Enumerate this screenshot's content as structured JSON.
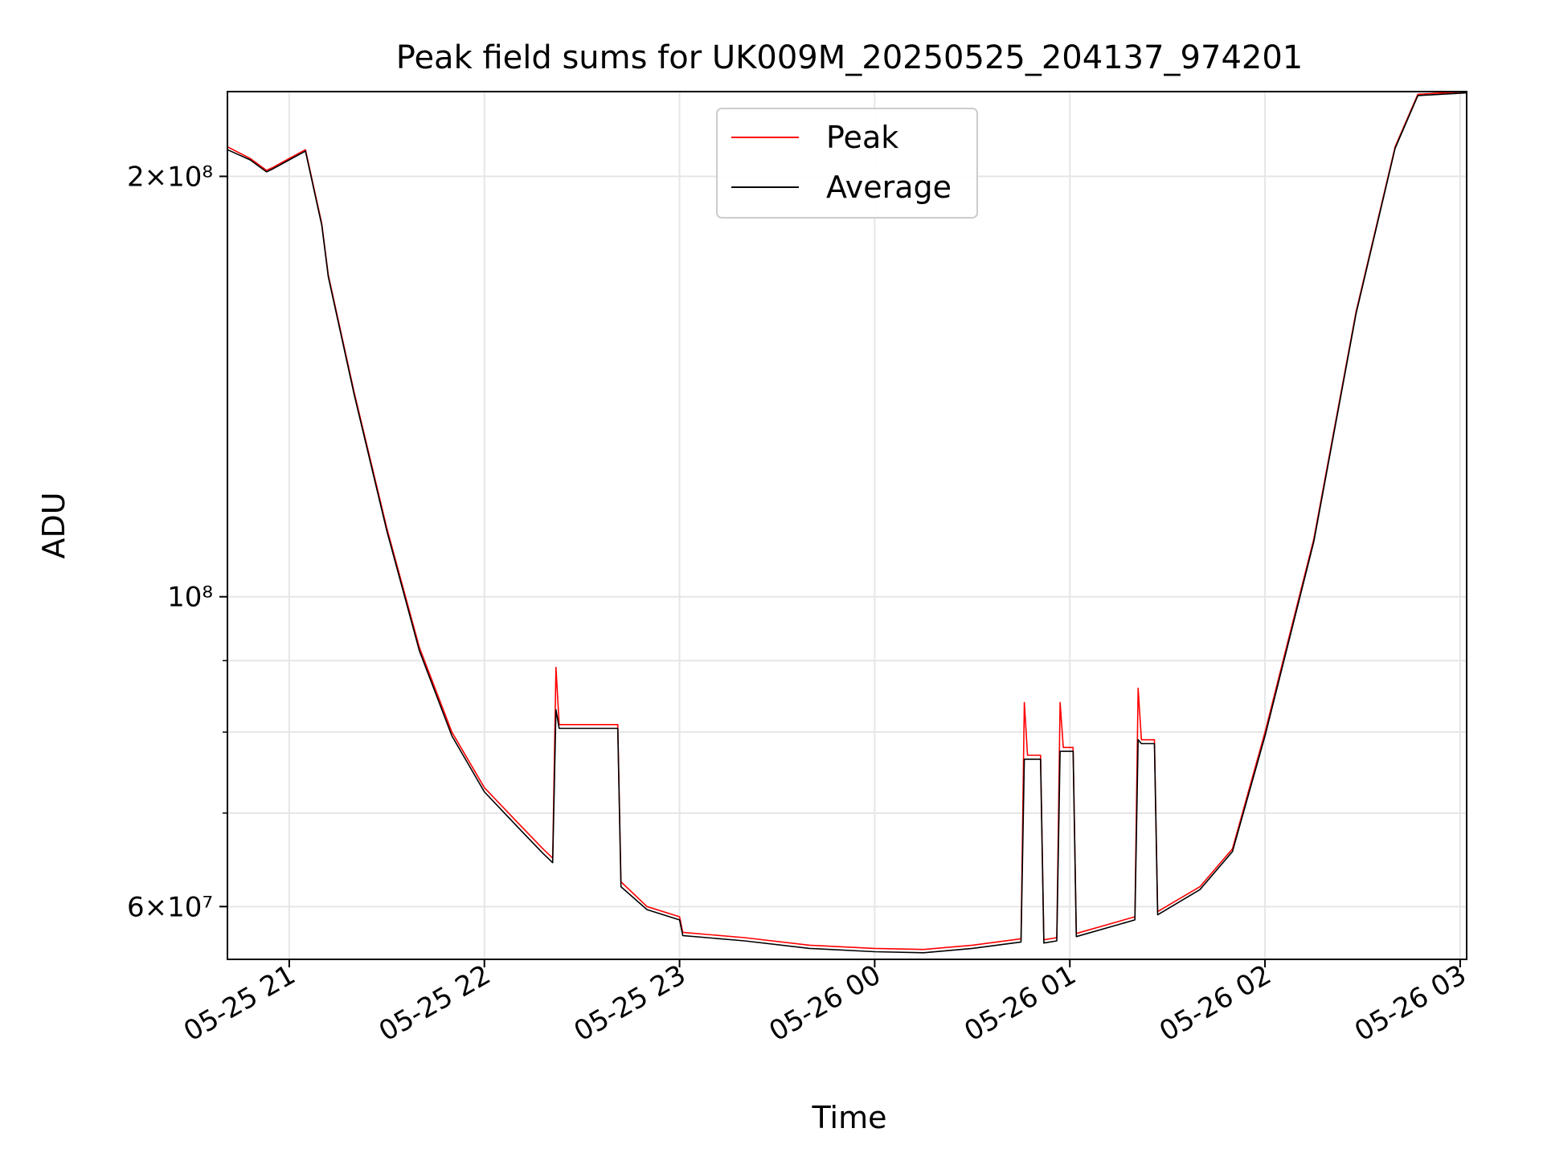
{
  "chart_data": {
    "type": "line",
    "title": "Peak field sums for UK009M_20250525_204137_974201",
    "xlabel": "Time",
    "ylabel": "ADU",
    "yscale": "log",
    "ylim": [
      55000000,
      230000000
    ],
    "xlim": [
      "2025-05-25 20:41",
      "2025-05-26 03:02"
    ],
    "grid": true,
    "legend_position": "top-center",
    "x_ticks": [
      {
        "t": "2025-05-25 21:00",
        "label": "05-25 21"
      },
      {
        "t": "2025-05-25 22:00",
        "label": "05-25 22"
      },
      {
        "t": "2025-05-25 23:00",
        "label": "05-25 23"
      },
      {
        "t": "2025-05-26 00:00",
        "label": "05-26 00"
      },
      {
        "t": "2025-05-26 01:00",
        "label": "05-26 01"
      },
      {
        "t": "2025-05-26 02:00",
        "label": "05-26 02"
      },
      {
        "t": "2025-05-26 03:00",
        "label": "05-26 03"
      }
    ],
    "y_ticks": [
      {
        "value": 60000000,
        "label": "6×10⁷"
      },
      {
        "value": 100000000,
        "label": "10⁸"
      },
      {
        "value": 200000000,
        "label": "2×10⁸"
      }
    ],
    "y_minor_ticks": [
      70000000,
      80000000,
      90000000
    ],
    "series": [
      {
        "name": "Peak",
        "color": "#ff0000",
        "points": [
          [
            "2025-05-25 20:41",
            210000000
          ],
          [
            "2025-05-25 20:48",
            206000000
          ],
          [
            "2025-05-25 20:53",
            202000000
          ],
          [
            "2025-05-25 20:55",
            203000000
          ],
          [
            "2025-05-25 21:00",
            206000000
          ],
          [
            "2025-05-25 21:05",
            209000000
          ],
          [
            "2025-05-25 21:10",
            185000000
          ],
          [
            "2025-05-25 21:12",
            170000000
          ],
          [
            "2025-05-25 21:20",
            140000000
          ],
          [
            "2025-05-25 21:30",
            112000000
          ],
          [
            "2025-05-25 21:40",
            92000000
          ],
          [
            "2025-05-25 21:50",
            80000000
          ],
          [
            "2025-05-25 22:00",
            73000000
          ],
          [
            "2025-05-25 22:10",
            69000000
          ],
          [
            "2025-05-25 22:18",
            66000000
          ],
          [
            "2025-05-25 22:21",
            65000000
          ],
          [
            "2025-05-25 22:22",
            89000000
          ],
          [
            "2025-05-25 22:23",
            81000000
          ],
          [
            "2025-05-25 22:35",
            81000000
          ],
          [
            "2025-05-25 22:41",
            81000000
          ],
          [
            "2025-05-25 22:42",
            62500000
          ],
          [
            "2025-05-25 22:50",
            60000000
          ],
          [
            "2025-05-25 23:00",
            59000000
          ],
          [
            "2025-05-25 23:01",
            57500000
          ],
          [
            "2025-05-25 23:20",
            57000000
          ],
          [
            "2025-05-25 23:40",
            56300000
          ],
          [
            "2025-05-26 00:00",
            56000000
          ],
          [
            "2025-05-26 00:15",
            55900000
          ],
          [
            "2025-05-26 00:30",
            56300000
          ],
          [
            "2025-05-26 00:45",
            56900000
          ],
          [
            "2025-05-26 00:46",
            84000000
          ],
          [
            "2025-05-26 00:47",
            77000000
          ],
          [
            "2025-05-26 00:51",
            77000000
          ],
          [
            "2025-05-26 00:52",
            56800000
          ],
          [
            "2025-05-26 00:56",
            57000000
          ],
          [
            "2025-05-26 00:57",
            84000000
          ],
          [
            "2025-05-26 00:58",
            78000000
          ],
          [
            "2025-05-26 01:01",
            78000000
          ],
          [
            "2025-05-26 01:02",
            57400000
          ],
          [
            "2025-05-26 01:20",
            59000000
          ],
          [
            "2025-05-26 01:21",
            86000000
          ],
          [
            "2025-05-26 01:22",
            79000000
          ],
          [
            "2025-05-26 01:26",
            79000000
          ],
          [
            "2025-05-26 01:27",
            59500000
          ],
          [
            "2025-05-26 01:40",
            62000000
          ],
          [
            "2025-05-26 01:50",
            66000000
          ],
          [
            "2025-05-26 02:00",
            80000000
          ],
          [
            "2025-05-26 02:15",
            110000000
          ],
          [
            "2025-05-26 02:28",
            160000000
          ],
          [
            "2025-05-26 02:40",
            210000000
          ],
          [
            "2025-05-26 02:47",
            229000000
          ],
          [
            "2025-05-26 03:02",
            230000000
          ]
        ]
      },
      {
        "name": "Average",
        "color": "#000000",
        "points": [
          [
            "2025-05-25 20:41",
            209000000
          ],
          [
            "2025-05-25 20:48",
            205500000
          ],
          [
            "2025-05-25 20:53",
            201500000
          ],
          [
            "2025-05-25 20:55",
            202500000
          ],
          [
            "2025-05-25 21:00",
            205500000
          ],
          [
            "2025-05-25 21:05",
            208500000
          ],
          [
            "2025-05-25 21:10",
            184500000
          ],
          [
            "2025-05-25 21:12",
            169500000
          ],
          [
            "2025-05-25 21:20",
            139500000
          ],
          [
            "2025-05-25 21:30",
            111500000
          ],
          [
            "2025-05-25 21:40",
            91500000
          ],
          [
            "2025-05-25 21:50",
            79500000
          ],
          [
            "2025-05-25 22:00",
            72500000
          ],
          [
            "2025-05-25 22:10",
            68500000
          ],
          [
            "2025-05-25 22:18",
            65500000
          ],
          [
            "2025-05-25 22:21",
            64500000
          ],
          [
            "2025-05-25 22:22",
            83000000
          ],
          [
            "2025-05-25 22:23",
            80500000
          ],
          [
            "2025-05-25 22:35",
            80500000
          ],
          [
            "2025-05-25 22:41",
            80500000
          ],
          [
            "2025-05-25 22:42",
            62000000
          ],
          [
            "2025-05-25 22:50",
            59700000
          ],
          [
            "2025-05-25 23:00",
            58700000
          ],
          [
            "2025-05-25 23:01",
            57200000
          ],
          [
            "2025-05-25 23:20",
            56700000
          ],
          [
            "2025-05-25 23:40",
            56000000
          ],
          [
            "2025-05-26 00:00",
            55700000
          ],
          [
            "2025-05-26 00:15",
            55600000
          ],
          [
            "2025-05-26 00:30",
            56000000
          ],
          [
            "2025-05-26 00:45",
            56600000
          ],
          [
            "2025-05-26 00:46",
            76500000
          ],
          [
            "2025-05-26 00:47",
            76500000
          ],
          [
            "2025-05-26 00:51",
            76500000
          ],
          [
            "2025-05-26 00:52",
            56500000
          ],
          [
            "2025-05-26 00:56",
            56700000
          ],
          [
            "2025-05-26 00:57",
            77500000
          ],
          [
            "2025-05-26 00:58",
            77500000
          ],
          [
            "2025-05-26 01:01",
            77500000
          ],
          [
            "2025-05-26 01:02",
            57100000
          ],
          [
            "2025-05-26 01:20",
            58700000
          ],
          [
            "2025-05-26 01:21",
            79000000
          ],
          [
            "2025-05-26 01:22",
            78500000
          ],
          [
            "2025-05-26 01:26",
            78500000
          ],
          [
            "2025-05-26 01:27",
            59200000
          ],
          [
            "2025-05-26 01:40",
            61700000
          ],
          [
            "2025-05-26 01:50",
            65700000
          ],
          [
            "2025-05-26 02:00",
            79500000
          ],
          [
            "2025-05-26 02:15",
            109500000
          ],
          [
            "2025-05-26 02:28",
            159500000
          ],
          [
            "2025-05-26 02:40",
            209500000
          ],
          [
            "2025-05-26 02:47",
            228500000
          ],
          [
            "2025-05-26 03:02",
            229500000
          ]
        ]
      }
    ]
  }
}
